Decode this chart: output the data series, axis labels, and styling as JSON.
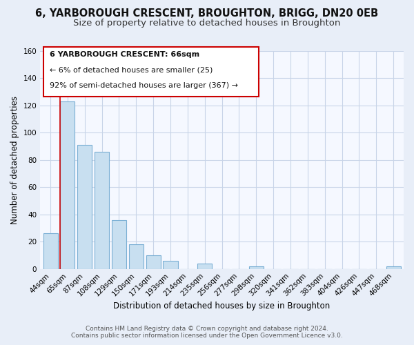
{
  "title": "6, YARBOROUGH CRESCENT, BROUGHTON, BRIGG, DN20 0EB",
  "subtitle": "Size of property relative to detached houses in Broughton",
  "xlabel": "Distribution of detached houses by size in Broughton",
  "ylabel": "Number of detached properties",
  "bar_labels": [
    "44sqm",
    "65sqm",
    "87sqm",
    "108sqm",
    "129sqm",
    "150sqm",
    "171sqm",
    "193sqm",
    "214sqm",
    "235sqm",
    "256sqm",
    "277sqm",
    "298sqm",
    "320sqm",
    "341sqm",
    "362sqm",
    "383sqm",
    "404sqm",
    "426sqm",
    "447sqm",
    "468sqm"
  ],
  "bar_values": [
    26,
    123,
    91,
    86,
    36,
    18,
    10,
    6,
    0,
    4,
    0,
    0,
    2,
    0,
    0,
    0,
    0,
    0,
    0,
    0,
    2
  ],
  "bar_color": "#c8dff0",
  "bar_edge_color": "#7aafd4",
  "highlight_bar_index": 1,
  "highlight_line_color": "#cc0000",
  "ylim": [
    0,
    160
  ],
  "yticks": [
    0,
    20,
    40,
    60,
    80,
    100,
    120,
    140,
    160
  ],
  "annotation_box_text_line1": "6 YARBOROUGH CRESCENT: 66sqm",
  "annotation_box_text_line2": "← 6% of detached houses are smaller (25)",
  "annotation_box_text_line3": "92% of semi-detached houses are larger (367) →",
  "footer_line1": "Contains HM Land Registry data © Crown copyright and database right 2024.",
  "footer_line2": "Contains public sector information licensed under the Open Government Licence v3.0.",
  "background_color": "#e8eef8",
  "plot_bg_color": "#f5f8ff",
  "grid_color": "#c8d4e8",
  "title_fontsize": 10.5,
  "subtitle_fontsize": 9.5,
  "axis_label_fontsize": 8.5,
  "tick_fontsize": 7.5,
  "annotation_fontsize": 8,
  "footer_fontsize": 6.5
}
